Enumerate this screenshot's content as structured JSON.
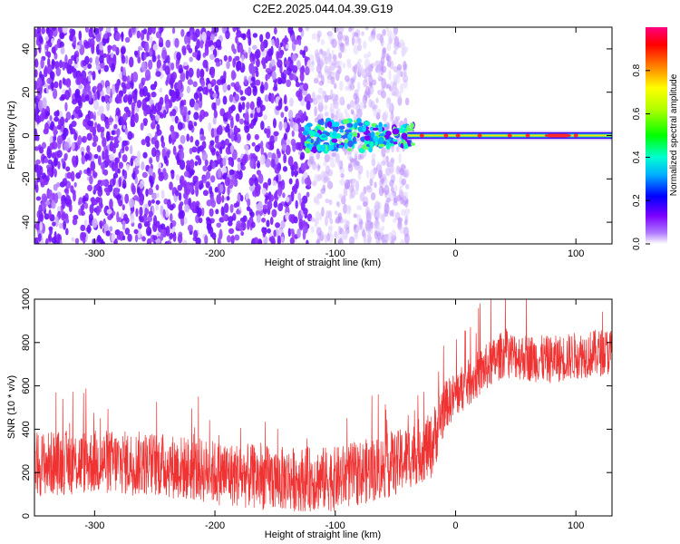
{
  "title": "C2E2.2025.044.04.39.G19",
  "chart_data": [
    {
      "type": "heatmap",
      "xlabel": "Height of straight line (km)",
      "ylabel": "Frequency (Hz)",
      "xlim": [
        -350,
        130
      ],
      "ylim": [
        -50,
        50
      ],
      "x_ticks": [
        -300,
        -200,
        -100,
        0,
        100
      ],
      "y_ticks": [
        -40,
        -20,
        0,
        20,
        40
      ],
      "colorbar": {
        "label": "Normalized spectral amplitude",
        "range": [
          0,
          1
        ],
        "ticks": [
          0.0,
          0.2,
          0.4,
          0.6,
          0.8
        ]
      },
      "features": {
        "noise_region_x": [
          -350,
          -40
        ],
        "narrowband_signal_x": [
          -40,
          130
        ],
        "signal_frequency": 0
      }
    },
    {
      "type": "line",
      "xlabel": "Height of straight line (km)",
      "ylabel": "SNR (10 * v/v)",
      "xlim": [
        -350,
        130
      ],
      "ylim": [
        0,
        1000
      ],
      "x_ticks": [
        -300,
        -200,
        -100,
        0,
        100
      ],
      "y_ticks": [
        0,
        200,
        400,
        600,
        800,
        1000
      ],
      "series": [
        {
          "color": "#ef3333",
          "x": [
            -350,
            -300,
            -250,
            -200,
            -150,
            -100,
            -50,
            -30,
            -20,
            -10,
            0,
            20,
            40,
            60,
            80,
            100,
            130
          ],
          "y": [
            240,
            250,
            240,
            200,
            170,
            170,
            240,
            300,
            320,
            500,
            560,
            660,
            750,
            730,
            720,
            740,
            760
          ]
        }
      ]
    }
  ]
}
